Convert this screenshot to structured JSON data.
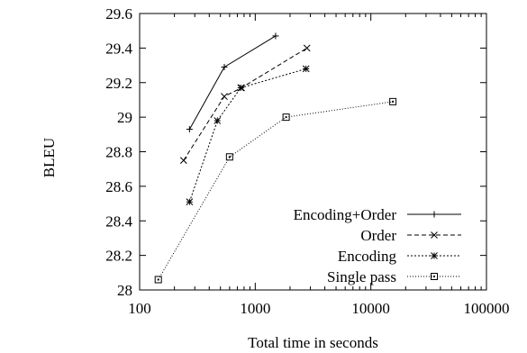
{
  "chart_data": {
    "type": "line",
    "title": "",
    "xlabel": "Total time in seconds",
    "ylabel": "BLEU",
    "xscale": "log",
    "xlim": [
      100,
      100000
    ],
    "ylim": [
      28,
      29.6
    ],
    "xticks": [
      100,
      1000,
      10000,
      100000
    ],
    "xtick_labels": [
      "100",
      "1000",
      "10000",
      "100000"
    ],
    "yticks": [
      28,
      28.2,
      28.4,
      28.6,
      28.8,
      29,
      29.2,
      29.4,
      29.6
    ],
    "ytick_labels": [
      "28",
      "28.2",
      "28.4",
      "28.6",
      "28.8",
      "29",
      "29.2",
      "29.4",
      "29.6"
    ],
    "grid": false,
    "legend_position": "bottom-right",
    "series": [
      {
        "name": "Encoding+Order",
        "marker": "plus",
        "line_style": "solid",
        "x": [
          270,
          540,
          1500
        ],
        "y": [
          28.93,
          29.29,
          29.47
        ]
      },
      {
        "name": "Order",
        "marker": "cross",
        "line_style": "dashed",
        "x": [
          240,
          540,
          760,
          2800
        ],
        "y": [
          28.75,
          29.12,
          29.17,
          29.4
        ]
      },
      {
        "name": "Encoding",
        "marker": "asterisk",
        "line_style": "dotted",
        "x": [
          270,
          470,
          750,
          2750
        ],
        "y": [
          28.51,
          28.98,
          29.17,
          29.28
        ]
      },
      {
        "name": "Single pass",
        "marker": "square",
        "line_style": "fine-dotted",
        "x": [
          145,
          600,
          1850,
          15500
        ],
        "y": [
          28.06,
          28.77,
          29.0,
          29.09
        ]
      }
    ]
  }
}
